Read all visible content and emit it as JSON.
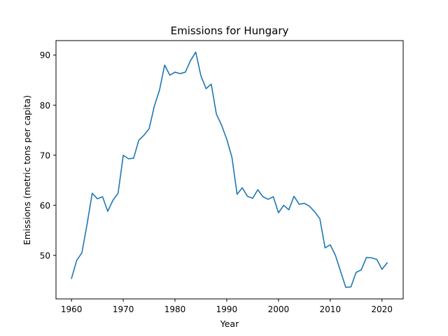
{
  "chart_data": {
    "type": "line",
    "title": "Emissions for Hungary",
    "xlabel": "Year",
    "ylabel": "Emissions (metric tons per capita)",
    "xlim": [
      1957.0,
      2024.1
    ],
    "ylim": [
      41.3,
      92.9
    ],
    "xticks": [
      1960,
      1970,
      1980,
      1990,
      2000,
      2010,
      2020
    ],
    "yticks": [
      50,
      60,
      70,
      80,
      90
    ],
    "grid": false,
    "legend": "none",
    "series": [
      {
        "color": "#1f77b4",
        "x": [
          1960,
          1961,
          1962,
          1963,
          1964,
          1965,
          1966,
          1967,
          1968,
          1969,
          1970,
          1971,
          1972,
          1973,
          1974,
          1975,
          1976,
          1977,
          1978,
          1979,
          1980,
          1981,
          1982,
          1983,
          1984,
          1985,
          1986,
          1987,
          1988,
          1989,
          1990,
          1991,
          1992,
          1993,
          1994,
          1995,
          1996,
          1997,
          1998,
          1999,
          2000,
          2001,
          2002,
          2003,
          2004,
          2005,
          2006,
          2007,
          2008,
          2009,
          2010,
          2011,
          2012,
          2013,
          2014,
          2015,
          2016,
          2017,
          2018,
          2019,
          2020,
          2021
        ],
        "values": [
          45.4,
          49.0,
          50.5,
          56.2,
          62.4,
          61.3,
          61.7,
          58.8,
          61.0,
          62.4,
          70.0,
          69.3,
          69.4,
          73.0,
          74.0,
          75.3,
          79.8,
          83.0,
          88.0,
          86.0,
          86.6,
          86.3,
          86.6,
          88.9,
          90.6,
          85.9,
          83.3,
          84.2,
          78.2,
          76.0,
          73.2,
          69.6,
          62.2,
          63.5,
          61.8,
          61.4,
          63.1,
          61.7,
          61.2,
          61.7,
          58.5,
          60.0,
          59.1,
          61.8,
          60.2,
          60.4,
          59.8,
          58.7,
          57.3,
          51.5,
          52.1,
          50.0,
          46.8,
          43.6,
          43.7,
          46.6,
          47.1,
          49.6,
          49.5,
          49.2,
          47.2,
          48.5
        ]
      }
    ]
  }
}
